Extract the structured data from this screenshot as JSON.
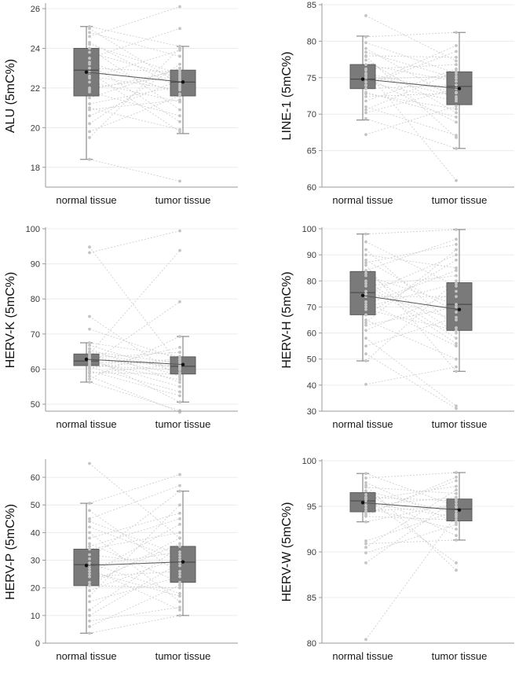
{
  "style": {
    "box_fill": "#7a7a7a",
    "box_stroke": "#5c5c5c",
    "whisker": "#8c8c8c",
    "pair_line": "#cfcfcf",
    "point": "#c4c4c4",
    "median_line": "#555555",
    "mean_dot": "#111111",
    "axis": "#9a9a9a",
    "grid": "#ececec"
  },
  "chart_data": [
    {
      "type": "box",
      "ylabel": "ALU (5mC%)",
      "categories": [
        "normal tissue",
        "tumor tissue"
      ],
      "ylim": [
        17,
        26.2
      ],
      "yticks": [
        18,
        20,
        22,
        24,
        26
      ],
      "grid": true,
      "boxes": [
        {
          "min": 18.4,
          "q1": 21.6,
          "median": 22.9,
          "q3": 24.0,
          "max": 25.1,
          "mean": 22.8
        },
        {
          "min": 19.7,
          "q1": 21.6,
          "median": 22.3,
          "q3": 22.9,
          "max": 24.1,
          "mean": 22.3
        }
      ],
      "paired": [
        [
          25.1,
          24.1
        ],
        [
          25.0,
          22.2
        ],
        [
          24.6,
          26.1
        ],
        [
          24.3,
          22.0
        ],
        [
          24.0,
          20.9
        ],
        [
          23.8,
          22.5
        ],
        [
          23.5,
          25.0
        ],
        [
          23.3,
          21.7
        ],
        [
          23.0,
          22.8
        ],
        [
          22.8,
          19.8
        ],
        [
          22.5,
          23.9
        ],
        [
          22.3,
          21.3
        ],
        [
          22.0,
          22.6
        ],
        [
          21.8,
          20.6
        ],
        [
          21.5,
          23.0
        ],
        [
          21.2,
          22.1
        ],
        [
          21.0,
          19.9
        ],
        [
          20.6,
          22.4
        ],
        [
          20.2,
          23.2
        ],
        [
          19.8,
          21.6
        ],
        [
          18.4,
          17.3
        ],
        [
          24.8,
          23.6
        ],
        [
          22.6,
          21.9
        ],
        [
          21.9,
          22.9
        ],
        [
          23.2,
          20.3
        ],
        [
          20.9,
          21.4
        ],
        [
          24.2,
          22.7
        ],
        [
          19.5,
          24.0
        ]
      ]
    },
    {
      "type": "box",
      "ylabel": "LINE-1 (5mC%)",
      "categories": [
        "normal tissue",
        "tumor tissue"
      ],
      "ylim": [
        60,
        85
      ],
      "yticks": [
        60,
        65,
        70,
        75,
        80,
        85
      ],
      "grid": true,
      "boxes": [
        {
          "min": 69.2,
          "q1": 73.5,
          "median": 74.8,
          "q3": 76.8,
          "max": 80.7,
          "mean": 74.8
        },
        {
          "min": 65.3,
          "q1": 71.3,
          "median": 73.8,
          "q3": 75.8,
          "max": 81.2,
          "mean": 73.5
        }
      ],
      "paired": [
        [
          83.5,
          77.3
        ],
        [
          80.6,
          81.2
        ],
        [
          79.8,
          75.6
        ],
        [
          79.0,
          72.1
        ],
        [
          78.0,
          77.8
        ],
        [
          77.4,
          70.2
        ],
        [
          76.8,
          74.5
        ],
        [
          76.2,
          76.8
        ],
        [
          75.6,
          73.0
        ],
        [
          75.1,
          68.9
        ],
        [
          74.8,
          75.2
        ],
        [
          74.4,
          71.8
        ],
        [
          73.9,
          78.6
        ],
        [
          73.5,
          74.0
        ],
        [
          73.0,
          69.6
        ],
        [
          72.4,
          72.9
        ],
        [
          71.8,
          76.2
        ],
        [
          71.0,
          67.1
        ],
        [
          70.2,
          73.5
        ],
        [
          69.4,
          65.3
        ],
        [
          67.2,
          71.1
        ],
        [
          76.0,
          60.9
        ],
        [
          74.0,
          79.4
        ],
        [
          72.8,
          70.7
        ],
        [
          78.5,
          74.9
        ],
        [
          70.6,
          75.9
        ],
        [
          75.4,
          72.4
        ],
        [
          77.9,
          66.8
        ]
      ]
    },
    {
      "type": "box",
      "ylabel": "HERV-K (5mC%)",
      "categories": [
        "normal tissue",
        "tumor tissue"
      ],
      "ylim": [
        48,
        100
      ],
      "yticks": [
        50,
        60,
        70,
        80,
        90,
        100
      ],
      "grid": true,
      "boxes": [
        {
          "min": 56.3,
          "q1": 61.0,
          "median": 62.3,
          "q3": 64.3,
          "max": 67.5,
          "mean": 62.8
        },
        {
          "min": 50.6,
          "q1": 58.6,
          "median": 60.8,
          "q3": 63.5,
          "max": 69.3,
          "mean": 61.3
        }
      ],
      "paired": [
        [
          94.8,
          61.0
        ],
        [
          93.2,
          99.4
        ],
        [
          75.0,
          57.6
        ],
        [
          71.4,
          62.8
        ],
        [
          67.5,
          63.6
        ],
        [
          66.8,
          59.0
        ],
        [
          65.8,
          56.2
        ],
        [
          65.0,
          61.8
        ],
        [
          64.3,
          93.8
        ],
        [
          63.8,
          58.4
        ],
        [
          63.2,
          64.8
        ],
        [
          62.8,
          60.6
        ],
        [
          62.3,
          55.0
        ],
        [
          61.8,
          62.2
        ],
        [
          61.4,
          79.2
        ],
        [
          61.0,
          59.8
        ],
        [
          60.6,
          53.5
        ],
        [
          60.1,
          66.2
        ],
        [
          59.5,
          52.4
        ],
        [
          58.8,
          61.4
        ],
        [
          58.0,
          47.7
        ],
        [
          57.2,
          69.3
        ],
        [
          56.3,
          48.2
        ],
        [
          63.5,
          50.6
        ],
        [
          62.0,
          57.0
        ],
        [
          64.6,
          60.2
        ],
        [
          60.4,
          63.0
        ],
        [
          59.0,
          58.6
        ]
      ]
    },
    {
      "type": "box",
      "ylabel": "HERV-H (5mC%)",
      "categories": [
        "normal tissue",
        "tumor tissue"
      ],
      "ylim": [
        30,
        100
      ],
      "yticks": [
        30,
        40,
        50,
        60,
        70,
        80,
        90,
        100
      ],
      "grid": true,
      "boxes": [
        {
          "min": 49.3,
          "q1": 67.0,
          "median": 75.5,
          "q3": 83.6,
          "max": 98.0,
          "mean": 74.4
        },
        {
          "min": 45.3,
          "q1": 61.0,
          "median": 71.0,
          "q3": 79.3,
          "max": 99.7,
          "mean": 69.0
        }
      ],
      "paired": [
        [
          98.0,
          99.7
        ],
        [
          95.0,
          78.0
        ],
        [
          92.0,
          62.0
        ],
        [
          90.0,
          85.0
        ],
        [
          88.0,
          68.0
        ],
        [
          86.0,
          45.3
        ],
        [
          84.0,
          96.0
        ],
        [
          82.0,
          71.0
        ],
        [
          80.0,
          58.0
        ],
        [
          78.0,
          82.0
        ],
        [
          76.0,
          65.0
        ],
        [
          75.0,
          90.0
        ],
        [
          74.0,
          74.0
        ],
        [
          72.0,
          55.0
        ],
        [
          70.0,
          79.0
        ],
        [
          69.0,
          61.0
        ],
        [
          67.0,
          88.0
        ],
        [
          65.0,
          50.0
        ],
        [
          63.0,
          70.0
        ],
        [
          61.0,
          76.0
        ],
        [
          58.0,
          32.0
        ],
        [
          55.0,
          66.0
        ],
        [
          52.0,
          31.0
        ],
        [
          49.3,
          80.0
        ],
        [
          40.3,
          47.0
        ],
        [
          87.0,
          94.0
        ],
        [
          83.0,
          60.0
        ],
        [
          71.0,
          84.0
        ],
        [
          64.0,
          92.0
        ],
        [
          79.0,
          56.0
        ]
      ]
    },
    {
      "type": "box",
      "ylabel": "HERV-P (5mC%)",
      "categories": [
        "normal tissue",
        "tumor tissue"
      ],
      "ylim": [
        0,
        66
      ],
      "yticks": [
        0,
        10,
        20,
        30,
        40,
        50,
        60
      ],
      "grid": true,
      "boxes": [
        {
          "min": 3.6,
          "q1": 20.8,
          "median": 28.4,
          "q3": 34.0,
          "max": 50.6,
          "mean": 28.1
        },
        {
          "min": 10.0,
          "q1": 22.0,
          "median": 29.3,
          "q3": 35.0,
          "max": 55.0,
          "mean": 29.4
        }
      ],
      "paired": [
        [
          65.0,
          38.0
        ],
        [
          50.6,
          61.0
        ],
        [
          48.0,
          25.0
        ],
        [
          45.0,
          57.0
        ],
        [
          42.0,
          30.0
        ],
        [
          40.0,
          15.0
        ],
        [
          38.0,
          47.0
        ],
        [
          36.0,
          22.0
        ],
        [
          34.0,
          40.0
        ],
        [
          32.0,
          28.0
        ],
        [
          30.5,
          55.0
        ],
        [
          29.0,
          18.0
        ],
        [
          28.0,
          33.0
        ],
        [
          27.0,
          12.0
        ],
        [
          25.0,
          43.0
        ],
        [
          24.0,
          26.0
        ],
        [
          22.0,
          36.0
        ],
        [
          20.8,
          20.0
        ],
        [
          19.0,
          31.0
        ],
        [
          17.0,
          50.0
        ],
        [
          15.0,
          24.0
        ],
        [
          12.0,
          35.0
        ],
        [
          10.0,
          29.0
        ],
        [
          8.0,
          13.0
        ],
        [
          6.0,
          21.0
        ],
        [
          3.6,
          10.0
        ],
        [
          44.0,
          32.0
        ],
        [
          35.0,
          45.0
        ],
        [
          26.0,
          17.0
        ],
        [
          21.0,
          38.0
        ]
      ]
    },
    {
      "type": "box",
      "ylabel": "HERV-W (5mC%)",
      "categories": [
        "normal tissue",
        "tumor tissue"
      ],
      "ylim": [
        80,
        100
      ],
      "yticks": [
        80,
        85,
        90,
        95,
        100
      ],
      "grid": true,
      "boxes": [
        {
          "min": 93.3,
          "q1": 94.4,
          "median": 95.6,
          "q3": 96.5,
          "max": 98.6,
          "mean": 95.4
        },
        {
          "min": 91.3,
          "q1": 93.4,
          "median": 94.7,
          "q3": 95.8,
          "max": 98.7,
          "mean": 94.6
        }
      ],
      "paired": [
        [
          98.6,
          95.0
        ],
        [
          98.1,
          98.7
        ],
        [
          97.6,
          93.2
        ],
        [
          97.1,
          96.4
        ],
        [
          96.7,
          94.2
        ],
        [
          96.3,
          91.8
        ],
        [
          96.0,
          95.6
        ],
        [
          95.7,
          97.2
        ],
        [
          95.4,
          93.8
        ],
        [
          95.1,
          96.0
        ],
        [
          94.8,
          92.5
        ],
        [
          94.5,
          94.9
        ],
        [
          94.2,
          97.8
        ],
        [
          93.9,
          93.5
        ],
        [
          93.3,
          95.3
        ],
        [
          91.2,
          94.5
        ],
        [
          90.9,
          91.3
        ],
        [
          90.5,
          96.8
        ],
        [
          89.9,
          93.0
        ],
        [
          88.8,
          95.8
        ],
        [
          80.4,
          94.0
        ],
        [
          97.3,
          88.0
        ],
        [
          95.9,
          88.8
        ],
        [
          94.0,
          98.2
        ]
      ]
    }
  ]
}
